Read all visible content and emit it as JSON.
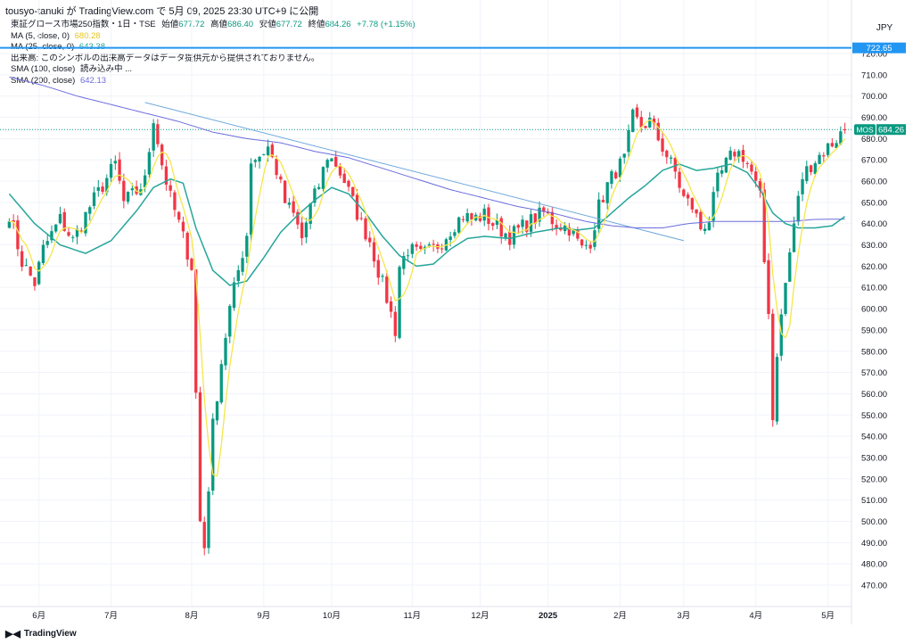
{
  "header": {
    "publisher": "tousyo-tanuki が TradingView.com で 5月 09, 2025 23:30 UTC+9 に公開"
  },
  "legend": {
    "title": "東証グロース市場250指数・1日・TSE",
    "open_label": "始値",
    "open": "677.72",
    "high_label": "高値",
    "high": "686.40",
    "low_label": "安値",
    "low": "677.72",
    "close_label": "終値",
    "close": "684.26",
    "change": "+7.78 (+1.15%)",
    "ma5_label": "MA (5, close, 0)",
    "ma5_value": "680.28",
    "ma25_label": "MA (25, close, 0)",
    "ma25_value": "643.38",
    "volume_note": "出来高: このシンボルの出来高データはデータ提供元から提供されておりません。",
    "sma100_label": "SMA (100, close)",
    "sma100_value": "読み込み中 ...",
    "sma200_label": "SMA (200, close)",
    "sma200_value": "642.13"
  },
  "currency": "JPY",
  "price_tag": {
    "symbol": "MOS",
    "value": "684.26"
  },
  "hline_tag": "722.65",
  "footer": {
    "brand": "TradingView"
  },
  "colors": {
    "up": "#089981",
    "down": "#f23645",
    "ma5": "#f5e64a",
    "ma25": "#26a69a",
    "sma200": "#6b6bdc",
    "trendline": "#6fa8dc",
    "hline": "#2196f3"
  },
  "chart_data": {
    "type": "candlestick",
    "y_ticks": [
      470,
      480,
      490,
      500,
      510,
      520,
      530,
      540,
      550,
      560,
      570,
      580,
      590,
      600,
      610,
      620,
      630,
      640,
      650,
      660,
      670,
      680,
      690,
      700,
      710,
      720
    ],
    "ylim": [
      462,
      732
    ],
    "x_labels": [
      {
        "label": "6月",
        "bar": 7
      },
      {
        "label": "7月",
        "bar": 24
      },
      {
        "label": "8月",
        "bar": 43
      },
      {
        "label": "9月",
        "bar": 60
      },
      {
        "label": "10月",
        "bar": 76
      },
      {
        "label": "11月",
        "bar": 95
      },
      {
        "label": "12月",
        "bar": 111
      },
      {
        "label": "2025",
        "bar": 127
      },
      {
        "label": "2月",
        "bar": 144
      },
      {
        "label": "3月",
        "bar": 159
      },
      {
        "label": "4月",
        "bar": 176
      },
      {
        "label": "5月",
        "bar": 193
      }
    ],
    "close_anchors": [
      [
        0,
        645
      ],
      [
        3,
        622
      ],
      [
        6,
        612
      ],
      [
        8,
        628
      ],
      [
        12,
        642
      ],
      [
        15,
        632
      ],
      [
        19,
        648
      ],
      [
        22,
        658
      ],
      [
        25,
        668
      ],
      [
        27,
        650
      ],
      [
        30,
        655
      ],
      [
        32,
        660
      ],
      [
        34,
        690
      ],
      [
        36,
        668
      ],
      [
        38,
        652
      ],
      [
        40,
        640
      ],
      [
        43,
        620
      ],
      [
        44,
        560
      ],
      [
        45,
        500
      ],
      [
        46,
        488
      ],
      [
        48,
        545
      ],
      [
        50,
        575
      ],
      [
        52,
        600
      ],
      [
        54,
        618
      ],
      [
        56,
        635
      ],
      [
        57,
        670
      ],
      [
        59,
        672
      ],
      [
        61,
        676
      ],
      [
        63,
        665
      ],
      [
        65,
        650
      ],
      [
        67,
        644
      ],
      [
        69,
        633
      ],
      [
        71,
        648
      ],
      [
        73,
        658
      ],
      [
        75,
        672
      ],
      [
        77,
        668
      ],
      [
        79,
        660
      ],
      [
        81,
        650
      ],
      [
        83,
        640
      ],
      [
        85,
        632
      ],
      [
        87,
        618
      ],
      [
        89,
        605
      ],
      [
        91,
        590
      ],
      [
        92,
        620
      ],
      [
        94,
        628
      ],
      [
        97,
        625
      ],
      [
        100,
        628
      ],
      [
        102,
        632
      ],
      [
        105,
        640
      ],
      [
        107,
        644
      ],
      [
        109,
        642
      ],
      [
        112,
        644
      ],
      [
        114,
        640
      ],
      [
        118,
        634
      ],
      [
        122,
        640
      ],
      [
        126,
        645
      ],
      [
        129,
        640
      ],
      [
        132,
        638
      ],
      [
        135,
        628
      ],
      [
        137,
        632
      ],
      [
        139,
        648
      ],
      [
        141,
        658
      ],
      [
        143,
        665
      ],
      [
        145,
        670
      ],
      [
        147,
        690
      ],
      [
        149,
        686
      ],
      [
        151,
        688
      ],
      [
        153,
        680
      ],
      [
        155,
        672
      ],
      [
        157,
        664
      ],
      [
        159,
        652
      ],
      [
        161,
        648
      ],
      [
        163,
        638
      ],
      [
        165,
        642
      ],
      [
        167,
        660
      ],
      [
        169,
        668
      ],
      [
        171,
        674
      ],
      [
        173,
        672
      ],
      [
        175,
        664
      ],
      [
        177,
        652
      ],
      [
        178,
        622
      ],
      [
        179,
        600
      ],
      [
        180,
        548
      ],
      [
        181,
        580
      ],
      [
        183,
        612
      ],
      [
        185,
        640
      ],
      [
        187,
        662
      ],
      [
        189,
        668
      ],
      [
        191,
        672
      ],
      [
        193,
        676
      ],
      [
        195,
        680
      ],
      [
        197,
        684.26
      ]
    ],
    "ma25_anchors": [
      [
        0,
        654
      ],
      [
        6,
        640
      ],
      [
        12,
        630
      ],
      [
        18,
        626
      ],
      [
        24,
        632
      ],
      [
        30,
        646
      ],
      [
        34,
        657
      ],
      [
        38,
        661
      ],
      [
        41,
        659
      ],
      [
        44,
        638
      ],
      [
        48,
        618
      ],
      [
        52,
        611
      ],
      [
        56,
        613
      ],
      [
        60,
        624
      ],
      [
        64,
        636
      ],
      [
        68,
        644
      ],
      [
        72,
        651
      ],
      [
        76,
        657
      ],
      [
        80,
        654
      ],
      [
        84,
        645
      ],
      [
        88,
        634
      ],
      [
        92,
        625
      ],
      [
        96,
        620
      ],
      [
        100,
        621
      ],
      [
        104,
        628
      ],
      [
        108,
        633
      ],
      [
        112,
        634
      ],
      [
        118,
        633
      ],
      [
        124,
        636
      ],
      [
        130,
        638
      ],
      [
        134,
        637
      ],
      [
        138,
        638
      ],
      [
        142,
        645
      ],
      [
        146,
        652
      ],
      [
        150,
        658
      ],
      [
        154,
        665
      ],
      [
        158,
        668
      ],
      [
        162,
        665
      ],
      [
        166,
        666
      ],
      [
        170,
        668
      ],
      [
        174,
        664
      ],
      [
        177,
        656
      ],
      [
        180,
        645
      ],
      [
        183,
        640
      ],
      [
        186,
        638
      ],
      [
        190,
        638
      ],
      [
        194,
        639
      ],
      [
        197,
        643.38
      ]
    ],
    "sma200_anchors": [
      [
        0,
        709
      ],
      [
        8,
        705
      ],
      [
        16,
        700
      ],
      [
        24,
        696
      ],
      [
        32,
        692
      ],
      [
        40,
        688
      ],
      [
        48,
        683
      ],
      [
        56,
        680
      ],
      [
        64,
        678
      ],
      [
        72,
        674
      ],
      [
        80,
        671
      ],
      [
        88,
        666
      ],
      [
        96,
        661
      ],
      [
        104,
        656
      ],
      [
        112,
        652
      ],
      [
        120,
        648
      ],
      [
        128,
        645
      ],
      [
        136,
        641
      ],
      [
        142,
        639
      ],
      [
        148,
        638
      ],
      [
        154,
        638
      ],
      [
        160,
        640
      ],
      [
        166,
        641
      ],
      [
        172,
        641
      ],
      [
        178,
        641
      ],
      [
        184,
        641
      ],
      [
        190,
        642
      ],
      [
        197,
        642.13
      ]
    ],
    "trendline": {
      "from": [
        32,
        697
      ],
      "to": [
        159,
        632
      ]
    },
    "hline": 722.65,
    "last_price": 684.26
  }
}
